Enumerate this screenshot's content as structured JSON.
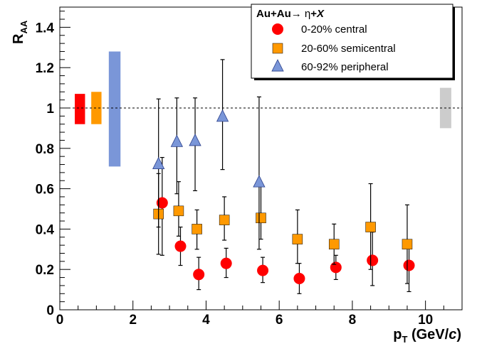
{
  "chart_data": {
    "type": "scatter",
    "title": "",
    "xlabel": {
      "main": "p",
      "sub": "T",
      "unit_pre": " (GeV/",
      "unit_italic": "c",
      "unit_post": ")"
    },
    "ylabel": {
      "main": "R",
      "sub": "AA"
    },
    "xlim": [
      0,
      11
    ],
    "ylim": [
      0,
      1.5
    ],
    "x_ticks": [
      0,
      2,
      4,
      6,
      8,
      10
    ],
    "y_ticks": [
      0,
      0.2,
      0.4,
      0.6,
      0.8,
      1,
      1.2,
      1.4
    ],
    "y_tick_labels": [
      "0",
      "0.2",
      "0.4",
      "0.6",
      "0.8",
      "1",
      "1.2",
      "1.4"
    ],
    "x_tick_labels": [
      "0",
      "2",
      "4",
      "6",
      "8",
      "10"
    ],
    "reference_line": 1.0,
    "legend": {
      "title_parts": {
        "a": "Au+Au",
        "arrow": "→ ",
        "b": "η",
        "c": "+",
        "d": "X"
      },
      "placement": "top-right"
    },
    "series": [
      {
        "name": "0-20% central",
        "marker": "circle",
        "color": "#ff0000",
        "x": [
          2.8,
          3.3,
          3.8,
          4.55,
          5.55,
          6.55,
          7.55,
          8.55,
          9.55
        ],
        "y": [
          0.53,
          0.315,
          0.175,
          0.23,
          0.195,
          0.155,
          0.21,
          0.245,
          0.22
        ],
        "err_low": [
          0.26,
          0.095,
          0.075,
          0.07,
          0.06,
          0.075,
          0.06,
          0.125,
          0.13
        ],
        "err_high": [
          0.225,
          0.095,
          0.085,
          0.075,
          0.065,
          0.075,
          0.06,
          0.14,
          0.12
        ],
        "sys_band": [
          0.92,
          1.07
        ]
      },
      {
        "name": "20-60% semicentral",
        "marker": "square",
        "color": "#ff9900",
        "x": [
          2.7,
          3.25,
          3.75,
          4.5,
          5.5,
          6.5,
          7.5,
          8.5,
          9.5
        ],
        "y": [
          0.475,
          0.49,
          0.4,
          0.445,
          0.455,
          0.35,
          0.325,
          0.41,
          0.325
        ],
        "err_low": [
          0.2,
          0.125,
          0.1,
          0.1,
          0.105,
          0.12,
          0.1,
          0.21,
          0.195
        ],
        "err_high": [
          0.2,
          0.145,
          0.095,
          0.115,
          0.155,
          0.145,
          0.1,
          0.215,
          0.195
        ],
        "sys_band": [
          0.92,
          1.08
        ]
      },
      {
        "name": "60-92% peripheral",
        "marker": "triangle",
        "color": "#7a96d8",
        "x": [
          2.7,
          3.2,
          3.7,
          4.45,
          5.45
        ],
        "y": [
          0.72,
          0.83,
          0.835,
          0.955,
          0.63
        ],
        "err_low": [
          0.31,
          0.255,
          0.245,
          0.26,
          0.33
        ],
        "err_high": [
          0.325,
          0.22,
          0.215,
          0.285,
          0.425
        ],
        "sys_band": [
          0.71,
          1.28
        ]
      }
    ],
    "global_sys_band": {
      "x": 10.55,
      "range": [
        0.9,
        1.1
      ],
      "color": "#cccccc"
    }
  }
}
